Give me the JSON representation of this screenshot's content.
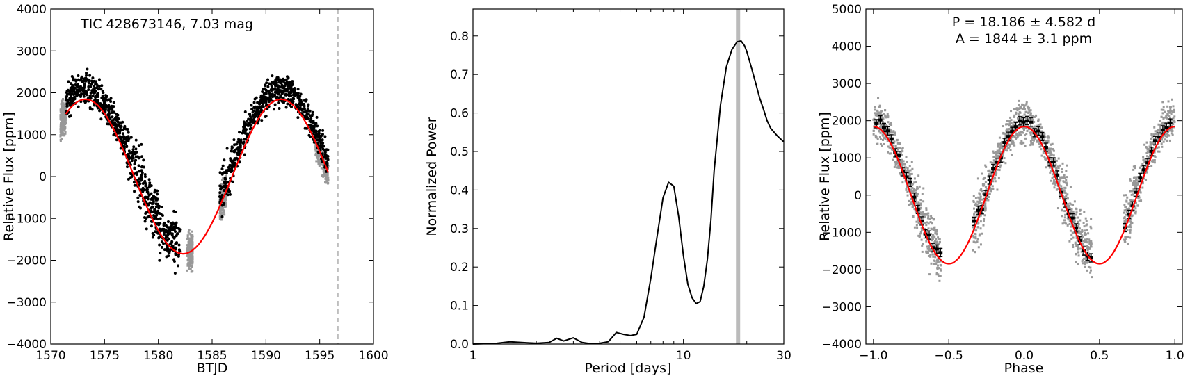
{
  "chart_data": [
    {
      "type": "scatter",
      "annotation": "TIC 428673146, 7.03 mag",
      "xlabel": "BTJD",
      "ylabel": "Relative Flux [ppm]",
      "xlim": [
        1570,
        1600
      ],
      "ylim": [
        -4000,
        4000
      ],
      "xticks": [
        1570,
        1575,
        1580,
        1585,
        1590,
        1595,
        1600
      ],
      "yticks": [
        -4000,
        -3000,
        -2000,
        -1000,
        0,
        1000,
        2000,
        3000,
        4000
      ],
      "xtick_labels": [
        "1570",
        "1575",
        "1580",
        "1585",
        "1590",
        "1595",
        "1600"
      ],
      "ytick_labels": [
        "−4000",
        "−3000",
        "−2000",
        "−1000",
        "0",
        "1000",
        "2000",
        "3000",
        "4000"
      ],
      "model": {
        "amplitude_ppm": 1844,
        "period_days": 18.186,
        "peak_time": 1591.4
      },
      "series": [
        {
          "color": "#999999",
          "x_ranges": [
            [
              1570.9,
              1571.4
            ],
            [
              1582.7,
              1583.2
            ],
            [
              1585.7,
              1586.3
            ],
            [
              1594.6,
              1595.8
            ]
          ]
        },
        {
          "color": "#000000",
          "x_range": [
            1571.4,
            1595.8
          ],
          "gap": [
            1582.0,
            1585.7
          ]
        }
      ],
      "model_color": "#ff0000",
      "vline": {
        "x": 1596.7,
        "style": "dashed",
        "color": "#999999"
      }
    },
    {
      "type": "line",
      "xlabel": "Period [days]",
      "ylabel": "Normalized Power",
      "xscale": "log",
      "xlim": [
        1,
        30
      ],
      "ylim": [
        0,
        0.87
      ],
      "xticks": [
        1,
        10,
        30
      ],
      "xtick_labels": [
        "1",
        "10",
        "30"
      ],
      "yticks": [
        0.0,
        0.1,
        0.2,
        0.3,
        0.4,
        0.5,
        0.6,
        0.7,
        0.8
      ],
      "ytick_labels": [
        "0.0",
        "0.1",
        "0.2",
        "0.3",
        "0.4",
        "0.5",
        "0.6",
        "0.7",
        "0.8"
      ],
      "x": [
        1,
        1.3,
        1.5,
        1.7,
        2,
        2.3,
        2.5,
        2.7,
        3,
        3.3,
        3.6,
        4,
        4.4,
        4.8,
        5.2,
        5.6,
        6,
        6.5,
        7,
        7.5,
        8,
        8.5,
        9,
        9.5,
        10,
        10.5,
        11,
        11.5,
        12,
        12.5,
        13,
        13.5,
        14,
        15,
        16,
        17,
        18,
        18.8,
        19.5,
        20,
        21,
        22,
        23,
        24,
        25,
        26,
        28,
        30
      ],
      "y": [
        0.0,
        0.002,
        0.006,
        0.004,
        0.002,
        0.004,
        0.015,
        0.008,
        0.016,
        0.004,
        0.001,
        0.002,
        0.006,
        0.03,
        0.025,
        0.022,
        0.025,
        0.07,
        0.17,
        0.28,
        0.38,
        0.42,
        0.41,
        0.33,
        0.23,
        0.155,
        0.12,
        0.105,
        0.11,
        0.15,
        0.22,
        0.32,
        0.45,
        0.62,
        0.72,
        0.765,
        0.785,
        0.787,
        0.775,
        0.76,
        0.72,
        0.68,
        0.64,
        0.61,
        0.58,
        0.56,
        0.54,
        0.525
      ],
      "highlight_x": 18.186,
      "highlight_color": "#bbbbbb",
      "line_color": "#000000"
    },
    {
      "type": "scatter",
      "title_lines": [
        "P = 18.186 ± 4.582 d",
        "A = 1844 ± 3.1 ppm"
      ],
      "xlabel": "Phase",
      "ylabel": "Relative Flux [ppm]",
      "xlim": [
        -1.05,
        1.05
      ],
      "ylim": [
        -4000,
        5000
      ],
      "xticks": [
        -1.0,
        -0.5,
        0.0,
        0.5,
        1.0
      ],
      "xtick_labels": [
        "−1.0",
        "−0.5",
        "0.0",
        "0.5",
        "1.0"
      ],
      "yticks": [
        -4000,
        -3000,
        -2000,
        -1000,
        0,
        1000,
        2000,
        3000,
        4000,
        5000
      ],
      "ytick_labels": [
        "−4000",
        "−3000",
        "−2000",
        "−1000",
        "0",
        "1000",
        "2000",
        "3000",
        "4000",
        "5000"
      ],
      "model": {
        "amplitude_ppm": 1844,
        "phase_of_max": 0.0
      },
      "point_color": "#999999",
      "binned_color": "#000000",
      "model_color": "#ff0000",
      "phase_gaps": [
        [
          -0.55,
          -0.34
        ],
        [
          0.45,
          0.66
        ]
      ]
    }
  ]
}
